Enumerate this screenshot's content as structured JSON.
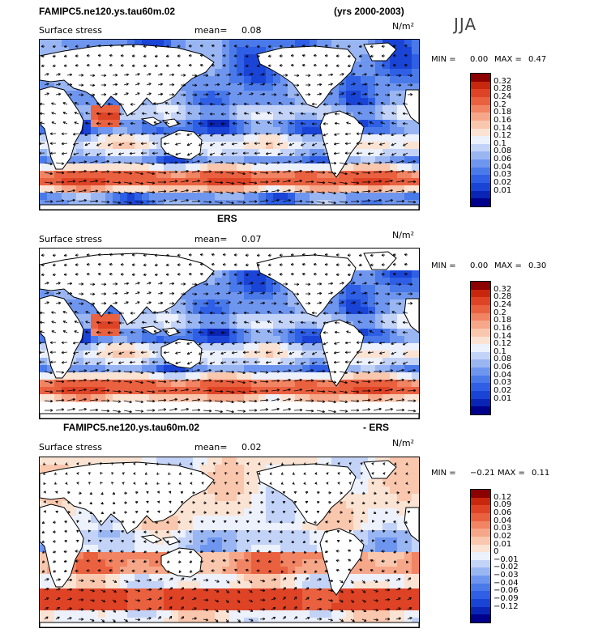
{
  "header": {
    "model_title": "FAMIPC5.ne120.ys.tau60m.02",
    "years": "(yrs 2000-2003)",
    "season": "JJA"
  },
  "panels": [
    {
      "title": "",
      "variable": "Surface stress",
      "mean_label": "mean=",
      "mean_value": "0.08",
      "units": "N/m²",
      "min_label": "MIN =",
      "min_value": "0.00",
      "max_label": "MAX =",
      "max_value": "0.47",
      "colorbar": {
        "colors": [
          "#00008b",
          "#0a25b5",
          "#1a44d6",
          "#2e5fe4",
          "#4a7ae9",
          "#6f96ef",
          "#99b6f3",
          "#c3d3f7",
          "#ecf1fb",
          "#fbe3d4",
          "#f9c7ad",
          "#f6a789",
          "#f18463",
          "#ea6140",
          "#de4326",
          "#c9260e",
          "#8b0000"
        ],
        "labels": [
          "0.32",
          "0.28",
          "0.24",
          "0.2",
          "0.18",
          "0.16",
          "0.14",
          "0.12",
          "0.1",
          "0.08",
          "0.06",
          "0.04",
          "0.03",
          "0.02",
          "0.01"
        ]
      }
    },
    {
      "title": "ERS",
      "variable": "Surface stress",
      "mean_label": "mean=",
      "mean_value": "0.07",
      "units": "N/m²",
      "min_label": "MIN =",
      "min_value": "0.00",
      "max_label": "MAX =",
      "max_value": "0.30",
      "colorbar": {
        "colors": [
          "#00008b",
          "#0a25b5",
          "#1a44d6",
          "#2e5fe4",
          "#4a7ae9",
          "#6f96ef",
          "#99b6f3",
          "#c3d3f7",
          "#ecf1fb",
          "#fbe3d4",
          "#f9c7ad",
          "#f6a789",
          "#f18463",
          "#ea6140",
          "#de4326",
          "#c9260e",
          "#8b0000"
        ],
        "labels": [
          "0.32",
          "0.28",
          "0.24",
          "0.2",
          "0.18",
          "0.16",
          "0.14",
          "0.12",
          "0.1",
          "0.08",
          "0.06",
          "0.04",
          "0.03",
          "0.02",
          "0.01"
        ]
      }
    },
    {
      "title_left": "FAMIPC5.ne120.ys.tau60m.02",
      "title_right": "- ERS",
      "variable": "Surface stress",
      "mean_label": "mean=",
      "mean_value": "0.02",
      "units": "N/m²",
      "min_label": "MIN =",
      "min_value": "−0.21",
      "max_label": "MAX =",
      "max_value": "0.11",
      "colorbar": {
        "colors": [
          "#00008b",
          "#0a25b5",
          "#1a44d6",
          "#2e5fe4",
          "#4a7ae9",
          "#6f96ef",
          "#99b6f3",
          "#c3d3f7",
          "#ecf1fb",
          "#fbe3d4",
          "#f9c7ad",
          "#f6a789",
          "#f18463",
          "#ea6140",
          "#de4326",
          "#c9260e",
          "#8b0000"
        ],
        "labels": [
          "0.12",
          "0.09",
          "0.06",
          "0.04",
          "0.03",
          "0.02",
          "0.01",
          "0",
          "−0.01",
          "−0.02",
          "−0.03",
          "−0.04",
          "−0.06",
          "−0.09",
          "−0.12"
        ]
      }
    }
  ],
  "chart_data": [
    {
      "type": "heatmap",
      "title": "FAMIPC5.ne120.ys.tau60m.02",
      "subtitle": "Surface stress (JJA, yrs 2000-2003)",
      "mean": 0.08,
      "min": 0.0,
      "max": 0.47,
      "units": "N/m²",
      "levels": [
        0.01,
        0.02,
        0.03,
        0.04,
        0.06,
        0.08,
        0.1,
        0.12,
        0.14,
        0.16,
        0.18,
        0.2,
        0.24,
        0.28,
        0.32
      ],
      "overlay": "wind stress vectors"
    },
    {
      "type": "heatmap",
      "title": "ERS",
      "subtitle": "Surface stress",
      "mean": 0.07,
      "min": 0.0,
      "max": 0.3,
      "units": "N/m²",
      "levels": [
        0.01,
        0.02,
        0.03,
        0.04,
        0.06,
        0.08,
        0.1,
        0.12,
        0.14,
        0.16,
        0.18,
        0.2,
        0.24,
        0.28,
        0.32
      ],
      "overlay": "wind stress vectors"
    },
    {
      "type": "heatmap",
      "title": "FAMIPC5.ne120.ys.tau60m.02 - ERS",
      "subtitle": "Surface stress difference",
      "mean": 0.02,
      "min": -0.21,
      "max": 0.11,
      "units": "N/m²",
      "levels": [
        -0.12,
        -0.09,
        -0.06,
        -0.04,
        -0.03,
        -0.02,
        -0.01,
        0,
        0.01,
        0.02,
        0.03,
        0.04,
        0.06,
        0.09,
        0.12
      ],
      "overlay": "difference vectors"
    }
  ]
}
